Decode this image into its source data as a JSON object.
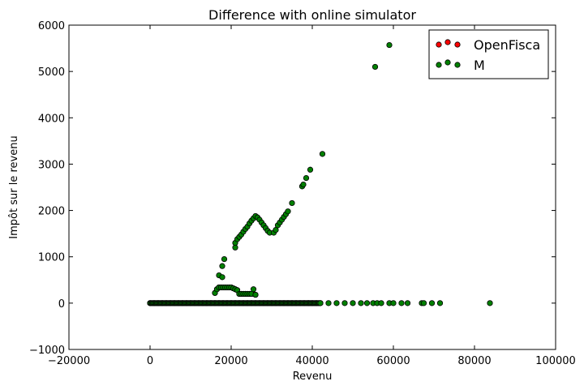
{
  "chart_data": {
    "type": "scatter",
    "title": "Difference with online simulator",
    "xlabel": "Revenu",
    "ylabel": "Impôt sur le revenu",
    "xlim": [
      -20000,
      100000
    ],
    "ylim": [
      -1000,
      6000
    ],
    "xticks": [
      -20000,
      0,
      20000,
      40000,
      60000,
      80000,
      100000
    ],
    "yticks": [
      -1000,
      0,
      1000,
      2000,
      3000,
      4000,
      5000,
      6000
    ],
    "xtick_labels": [
      "−20000",
      "0",
      "20000",
      "40000",
      "60000",
      "80000",
      "100000"
    ],
    "ytick_labels": [
      "−1000",
      "0",
      "1000",
      "2000",
      "3000",
      "4000",
      "5000",
      "6000"
    ],
    "grid": false,
    "legend_position": "top-right",
    "series": [
      {
        "name": "OpenFisca",
        "color": "#ff0000",
        "points": [
          [
            16000,
            220
          ],
          [
            16500,
            300
          ],
          [
            17000,
            340
          ],
          [
            17500,
            340
          ],
          [
            18000,
            340
          ],
          [
            18500,
            340
          ],
          [
            19000,
            340
          ],
          [
            19500,
            340
          ],
          [
            20000,
            340
          ],
          [
            20500,
            320
          ],
          [
            21000,
            300
          ],
          [
            21500,
            280
          ],
          [
            22000,
            200
          ],
          [
            22500,
            200
          ],
          [
            23000,
            200
          ],
          [
            23500,
            200
          ],
          [
            24000,
            200
          ],
          [
            24500,
            200
          ],
          [
            25000,
            200
          ],
          [
            25500,
            200
          ],
          [
            26000,
            180
          ]
        ]
      },
      {
        "name": "M",
        "color": "#008000",
        "points": [
          [
            0,
            0
          ],
          [
            1000,
            0
          ],
          [
            2000,
            0
          ],
          [
            3000,
            0
          ],
          [
            4000,
            0
          ],
          [
            5000,
            0
          ],
          [
            6000,
            0
          ],
          [
            7000,
            0
          ],
          [
            8000,
            0
          ],
          [
            9000,
            0
          ],
          [
            10000,
            0
          ],
          [
            11000,
            0
          ],
          [
            12000,
            0
          ],
          [
            13000,
            0
          ],
          [
            14000,
            0
          ],
          [
            15000,
            0
          ],
          [
            16000,
            0
          ],
          [
            17000,
            0
          ],
          [
            18000,
            0
          ],
          [
            19000,
            0
          ],
          [
            20000,
            0
          ],
          [
            21000,
            0
          ],
          [
            22000,
            0
          ],
          [
            23000,
            0
          ],
          [
            24000,
            0
          ],
          [
            25000,
            0
          ],
          [
            26000,
            0
          ],
          [
            27000,
            0
          ],
          [
            28000,
            0
          ],
          [
            29000,
            0
          ],
          [
            30000,
            0
          ],
          [
            31000,
            0
          ],
          [
            32000,
            0
          ],
          [
            33000,
            0
          ],
          [
            34000,
            0
          ],
          [
            35000,
            0
          ],
          [
            36000,
            0
          ],
          [
            37000,
            0
          ],
          [
            38000,
            0
          ],
          [
            39000,
            0
          ],
          [
            40000,
            0
          ],
          [
            41000,
            0
          ],
          [
            42000,
            0
          ],
          [
            44000,
            0
          ],
          [
            46000,
            0
          ],
          [
            48000,
            0
          ],
          [
            50000,
            0
          ],
          [
            52000,
            0
          ],
          [
            53500,
            0
          ],
          [
            55000,
            0
          ],
          [
            56000,
            0
          ],
          [
            57000,
            0
          ],
          [
            59000,
            0
          ],
          [
            60000,
            0
          ],
          [
            62000,
            0
          ],
          [
            63500,
            0
          ],
          [
            67000,
            0
          ],
          [
            67500,
            0
          ],
          [
            69500,
            0
          ],
          [
            71500,
            0
          ],
          [
            83800,
            0
          ],
          [
            16000,
            220
          ],
          [
            16500,
            300
          ],
          [
            17000,
            340
          ],
          [
            17500,
            340
          ],
          [
            18000,
            340
          ],
          [
            18500,
            340
          ],
          [
            19000,
            340
          ],
          [
            19500,
            340
          ],
          [
            20000,
            340
          ],
          [
            20500,
            320
          ],
          [
            21000,
            300
          ],
          [
            21500,
            280
          ],
          [
            22000,
            200
          ],
          [
            22500,
            200
          ],
          [
            23000,
            200
          ],
          [
            23500,
            200
          ],
          [
            24000,
            200
          ],
          [
            24500,
            200
          ],
          [
            25000,
            200
          ],
          [
            25500,
            300
          ],
          [
            26000,
            180
          ],
          [
            17000,
            600
          ],
          [
            17800,
            560
          ],
          [
            17800,
            800
          ],
          [
            18300,
            950
          ],
          [
            21000,
            1200
          ],
          [
            21000,
            1300
          ],
          [
            21500,
            1380
          ],
          [
            22000,
            1430
          ],
          [
            22500,
            1480
          ],
          [
            23000,
            1540
          ],
          [
            23500,
            1600
          ],
          [
            24000,
            1650
          ],
          [
            24500,
            1720
          ],
          [
            25000,
            1780
          ],
          [
            25500,
            1830
          ],
          [
            26000,
            1880
          ],
          [
            26500,
            1850
          ],
          [
            27000,
            1800
          ],
          [
            27500,
            1740
          ],
          [
            28000,
            1680
          ],
          [
            28500,
            1620
          ],
          [
            29000,
            1560
          ],
          [
            29500,
            1520
          ],
          [
            30500,
            1520
          ],
          [
            31000,
            1580
          ],
          [
            31500,
            1680
          ],
          [
            32000,
            1740
          ],
          [
            32500,
            1800
          ],
          [
            33000,
            1860
          ],
          [
            33500,
            1920
          ],
          [
            34000,
            1980
          ],
          [
            35000,
            2160
          ],
          [
            37500,
            2520
          ],
          [
            37800,
            2560
          ],
          [
            38500,
            2700
          ],
          [
            39500,
            2880
          ],
          [
            42500,
            3220
          ],
          [
            55500,
            5100
          ],
          [
            59000,
            5570
          ]
        ]
      }
    ]
  }
}
